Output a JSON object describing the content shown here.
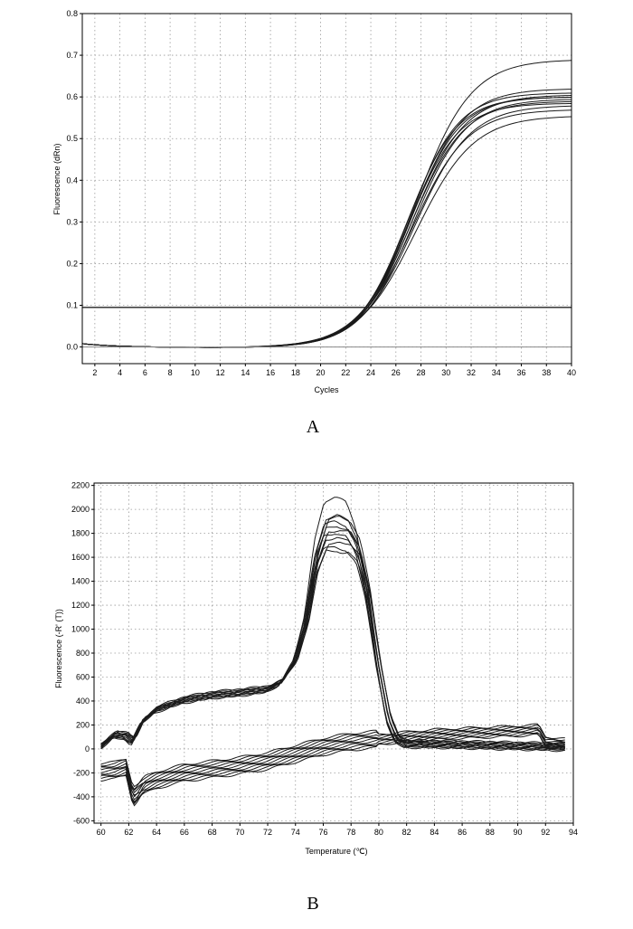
{
  "chart_data": [
    {
      "type": "line",
      "panel_label": "A",
      "xlabel": "Cycles",
      "ylabel": "Fluorescence (dRn)",
      "xlim": [
        1,
        40
      ],
      "ylim": [
        -0.04,
        0.8
      ],
      "x_ticks": [
        2,
        4,
        6,
        8,
        10,
        12,
        14,
        16,
        18,
        20,
        22,
        24,
        26,
        28,
        30,
        32,
        34,
        36,
        38,
        40
      ],
      "x_tick_labels": [
        "2",
        "4",
        "6",
        "8",
        "10",
        "12",
        "14",
        "16",
        "18",
        "20",
        "22",
        "24",
        "26",
        "28",
        "30",
        "32",
        "34",
        "36",
        "38",
        "40"
      ],
      "y_ticks": [
        0,
        0.1,
        0.2,
        0.3,
        0.4,
        0.5,
        0.6,
        0.7,
        0.8
      ],
      "y_tick_labels": [
        "0.0",
        "0.1",
        "0.2",
        "0.3",
        "0.4",
        "0.5",
        "0.6",
        "0.7",
        "0.8"
      ],
      "grid": true,
      "threshold": 0.095,
      "baseline": 0,
      "curve_model": "sigmoid amplification curves: y = plateau / (1 + exp(-(cycle - midpoint) / slope))",
      "series": [
        {
          "plateau": 0.69,
          "midpoint": 27.6,
          "slope": 2.2,
          "x": [
            1,
            10,
            20,
            22,
            24,
            26,
            28,
            30,
            32,
            34,
            36,
            38,
            40
          ],
          "values": [
            0.008,
            0.001,
            0.008,
            0.029,
            0.088,
            0.224,
            0.411,
            0.554,
            0.629,
            0.663,
            0.678,
            0.685,
            0.688
          ]
        },
        {
          "plateau": 0.62,
          "midpoint": 27.2,
          "slope": 2.1
        },
        {
          "plateau": 0.61,
          "midpoint": 27.0,
          "slope": 2.0
        },
        {
          "plateau": 0.605,
          "midpoint": 27.3,
          "slope": 2.1
        },
        {
          "plateau": 0.6,
          "midpoint": 27.1,
          "slope": 2.0
        },
        {
          "plateau": 0.6,
          "midpoint": 26.9,
          "slope": 2.0
        },
        {
          "plateau": 0.595,
          "midpoint": 27.4,
          "slope": 2.1
        },
        {
          "plateau": 0.59,
          "midpoint": 27.2,
          "slope": 2.1
        },
        {
          "plateau": 0.585,
          "midpoint": 27.0,
          "slope": 2.0
        },
        {
          "plateau": 0.58,
          "midpoint": 27.5,
          "slope": 2.2
        },
        {
          "plateau": 0.57,
          "midpoint": 27.3,
          "slope": 2.2
        },
        {
          "plateau": 0.555,
          "midpoint": 27.6,
          "slope": 2.3
        }
      ]
    },
    {
      "type": "line",
      "panel_label": "B",
      "xlabel": "Temperature (℃)",
      "ylabel": "Fluorescence (-R' (T))",
      "xlim": [
        59.5,
        94
      ],
      "ylim": [
        -620,
        2220
      ],
      "x_ticks": [
        60,
        62,
        64,
        66,
        68,
        70,
        72,
        74,
        76,
        78,
        80,
        82,
        84,
        86,
        88,
        90,
        92,
        94
      ],
      "x_tick_labels": [
        "60",
        "62",
        "64",
        "66",
        "68",
        "70",
        "72",
        "74",
        "76",
        "78",
        "80",
        "82",
        "84",
        "86",
        "88",
        "90",
        "92",
        "94"
      ],
      "y_ticks": [
        -600,
        -400,
        -200,
        0,
        200,
        400,
        600,
        800,
        1000,
        1200,
        1400,
        1600,
        1800,
        2000,
        2200
      ],
      "y_tick_labels": [
        "-600",
        "-400",
        "-200",
        "0",
        "200",
        "400",
        "600",
        "800",
        "1000",
        "1200",
        "1400",
        "1600",
        "1800",
        "2000",
        "2200"
      ],
      "grid": true,
      "groups": [
        {
          "name": "",
          "x": [
            60,
            61,
            61.8,
            62.3,
            63,
            64,
            66,
            68,
            70,
            72,
            73,
            74,
            74.8,
            75.5,
            76.2,
            77,
            77.8,
            78.5,
            79.2,
            80,
            80.7,
            81.3,
            82,
            84,
            86,
            88,
            90,
            92,
            93.5
          ],
          "base_values": [
            20,
            120,
            110,
            60,
            230,
            330,
            410,
            450,
            470,
            500,
            560,
            750,
            1100,
            1650,
            1930,
            1960,
            1920,
            1750,
            1350,
            700,
            250,
            80,
            40,
            40,
            35,
            30,
            25,
            20,
            15
          ],
          "peak_values": [
            2110,
            1950,
            1940,
            1900,
            1860,
            1830,
            1800,
            1760,
            1720,
            1680,
            1650
          ]
        },
        {
          "name": "",
          "x": [
            60,
            61,
            61.8,
            62.3,
            63,
            64,
            66,
            68,
            70,
            72,
            74,
            76,
            78,
            80,
            82,
            84,
            86,
            88,
            90,
            91.5,
            92,
            93.5
          ],
          "base_values": [
            -190,
            -180,
            -150,
            -370,
            -310,
            -260,
            -200,
            -170,
            -140,
            -100,
            -40,
            20,
            60,
            80,
            100,
            120,
            130,
            140,
            150,
            160,
            60,
            40
          ]
        }
      ]
    }
  ],
  "figure": {
    "panel_a_label": "A",
    "panel_b_label": "B"
  }
}
